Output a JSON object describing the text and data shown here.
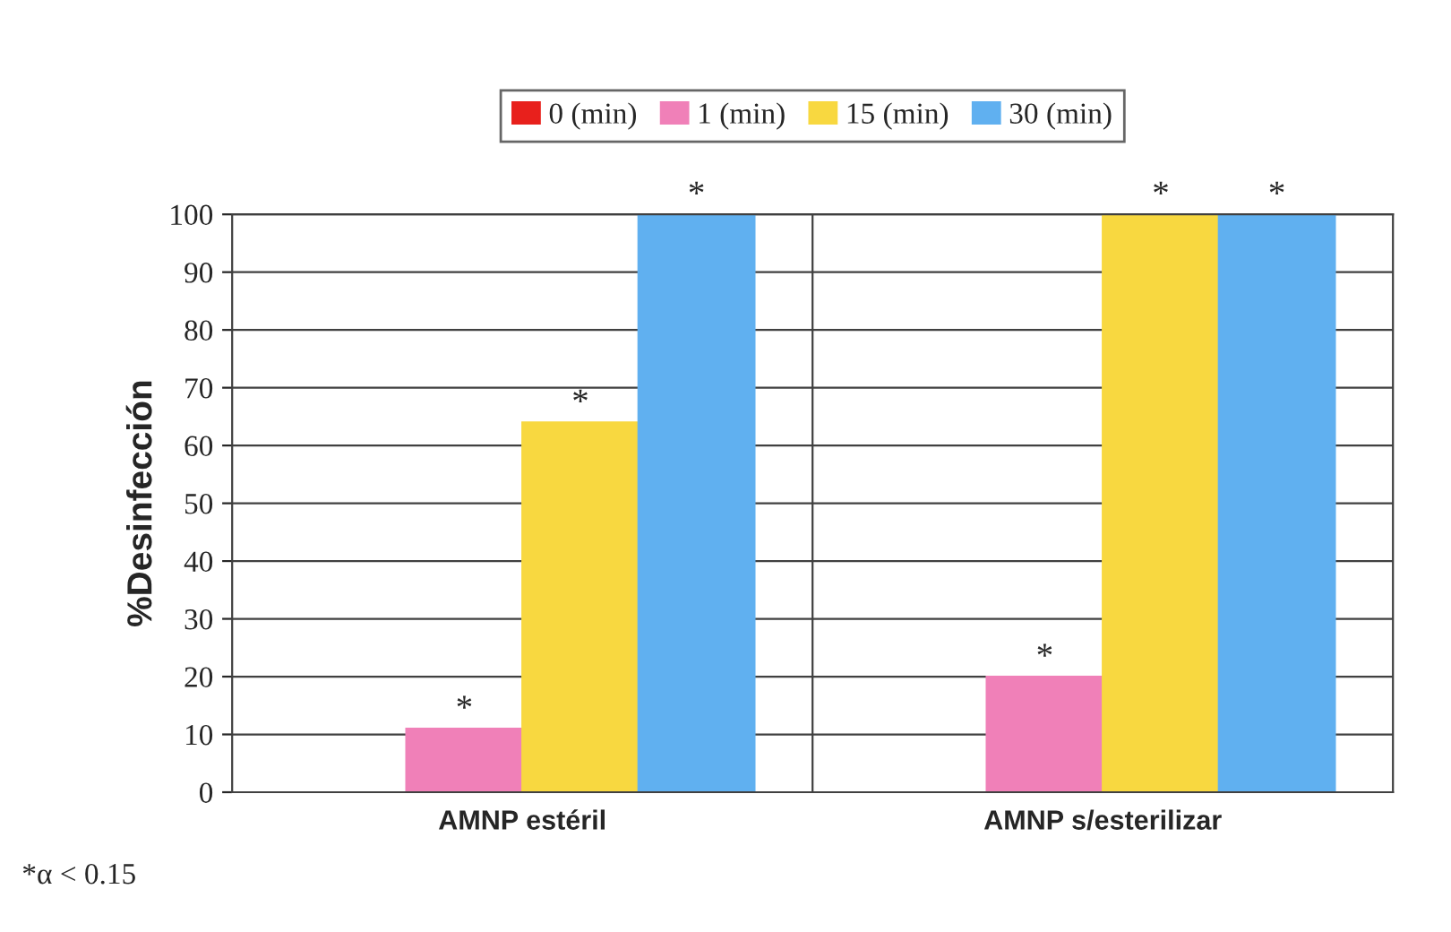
{
  "chart_data": {
    "type": "bar",
    "ylabel": "%Desinfección",
    "categories": [
      "AMNP estéril",
      "AMNP s/esterilizar"
    ],
    "series": [
      {
        "name": "0 (min)",
        "color": "#e8201c",
        "values": [
          0,
          0
        ]
      },
      {
        "name": "1 (min)",
        "color": "#f080b8",
        "values": [
          11,
          20
        ]
      },
      {
        "name": "15 (min)",
        "color": "#f8d840",
        "values": [
          64,
          100
        ]
      },
      {
        "name": "30 (min)",
        "color": "#60b0f0",
        "values": [
          100,
          100
        ]
      }
    ],
    "ylim": [
      0,
      100
    ],
    "yticks": [
      0,
      10,
      20,
      30,
      40,
      50,
      60,
      70,
      80,
      90,
      100
    ],
    "grid": "y",
    "legend": "top",
    "annotations": [
      {
        "text": "*",
        "x": "AMNP estéril",
        "y": 11
      },
      {
        "text": "*",
        "x": "AMNP estéril",
        "y": 64
      },
      "*",
      {
        "text": "*",
        "x": "AMNP s/esterilizar",
        "y": 20
      },
      {
        "text": "*",
        "x": "AMNP s/esterilizar",
        "y": 100
      },
      "*",
      "*α < 0.15"
    ]
  }
}
